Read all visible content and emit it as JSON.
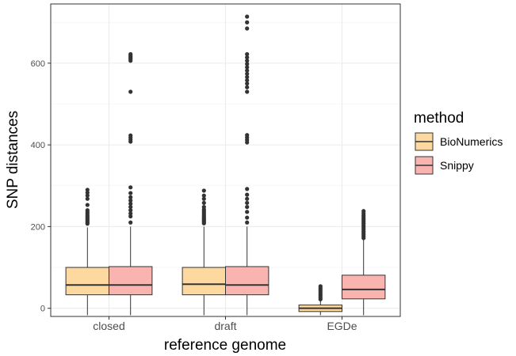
{
  "chart_data": {
    "type": "boxplot",
    "title": "",
    "xlabel": "reference genome",
    "ylabel": "SNP distances",
    "categories": [
      "closed",
      "draft",
      "EGDe"
    ],
    "yticks": [
      0,
      200,
      400,
      600
    ],
    "ylim": [
      -20,
      745
    ],
    "grid": true,
    "legend": {
      "title": "method",
      "position": "right"
    },
    "series": [
      {
        "name": "BioNumerics",
        "color": "#FDD9A0",
        "boxes": [
          {
            "category": "closed",
            "whisker_low": -17,
            "q1": 33,
            "median": 57,
            "q3": 100,
            "whisker_high": 198,
            "outliers": [
              207,
              210,
              213,
              216,
              219,
              222,
              225,
              228,
              232,
              236,
              240,
              253,
              268,
              276,
              283,
              290
            ]
          },
          {
            "category": "draft",
            "whisker_low": -17,
            "q1": 33,
            "median": 59,
            "q3": 100,
            "whisker_high": 200,
            "outliers": [
              208,
              211,
              214,
              217,
              220,
              223,
              226,
              230,
              234,
              238,
              242,
              248,
              258,
              268,
              276,
              288
            ]
          },
          {
            "category": "EGDe",
            "whisker_low": -17,
            "q1": -8,
            "median": 0,
            "q3": 8,
            "whisker_high": 18,
            "outliers": [
              22,
              26,
              30,
              34,
              38,
              42,
              46,
              50,
              54
            ]
          }
        ]
      },
      {
        "name": "Snippy",
        "color": "#F9B4B0",
        "boxes": [
          {
            "category": "closed",
            "whisker_low": -17,
            "q1": 33,
            "median": 57,
            "q3": 102,
            "whisker_high": 200,
            "outliers": [
              210,
              225,
              232,
              240,
              248,
              256,
              264,
              272,
              282,
              296,
              408,
              413,
              418,
              423,
              530,
              606,
              610,
              613,
              616,
              619,
              622
            ]
          },
          {
            "category": "draft",
            "whisker_low": -17,
            "q1": 33,
            "median": 57,
            "q3": 102,
            "whisker_high": 200,
            "outliers": [
              210,
              222,
              236,
              248,
              258,
              268,
              278,
              292,
              406,
              412,
              418,
              424,
              530,
              541,
              550,
              558,
              566,
              574,
              582,
              590,
              598,
              606,
              614,
              622,
              685,
              700,
              714
            ]
          },
          {
            "category": "EGDe",
            "whisker_low": -17,
            "q1": 23,
            "median": 46,
            "q3": 81,
            "whisker_high": 168,
            "outliers": [
              172,
              176,
              180,
              184,
              188,
              192,
              196,
              200,
              204,
              208,
              212,
              216,
              220,
              224,
              228,
              233,
              238
            ]
          }
        ]
      }
    ]
  }
}
